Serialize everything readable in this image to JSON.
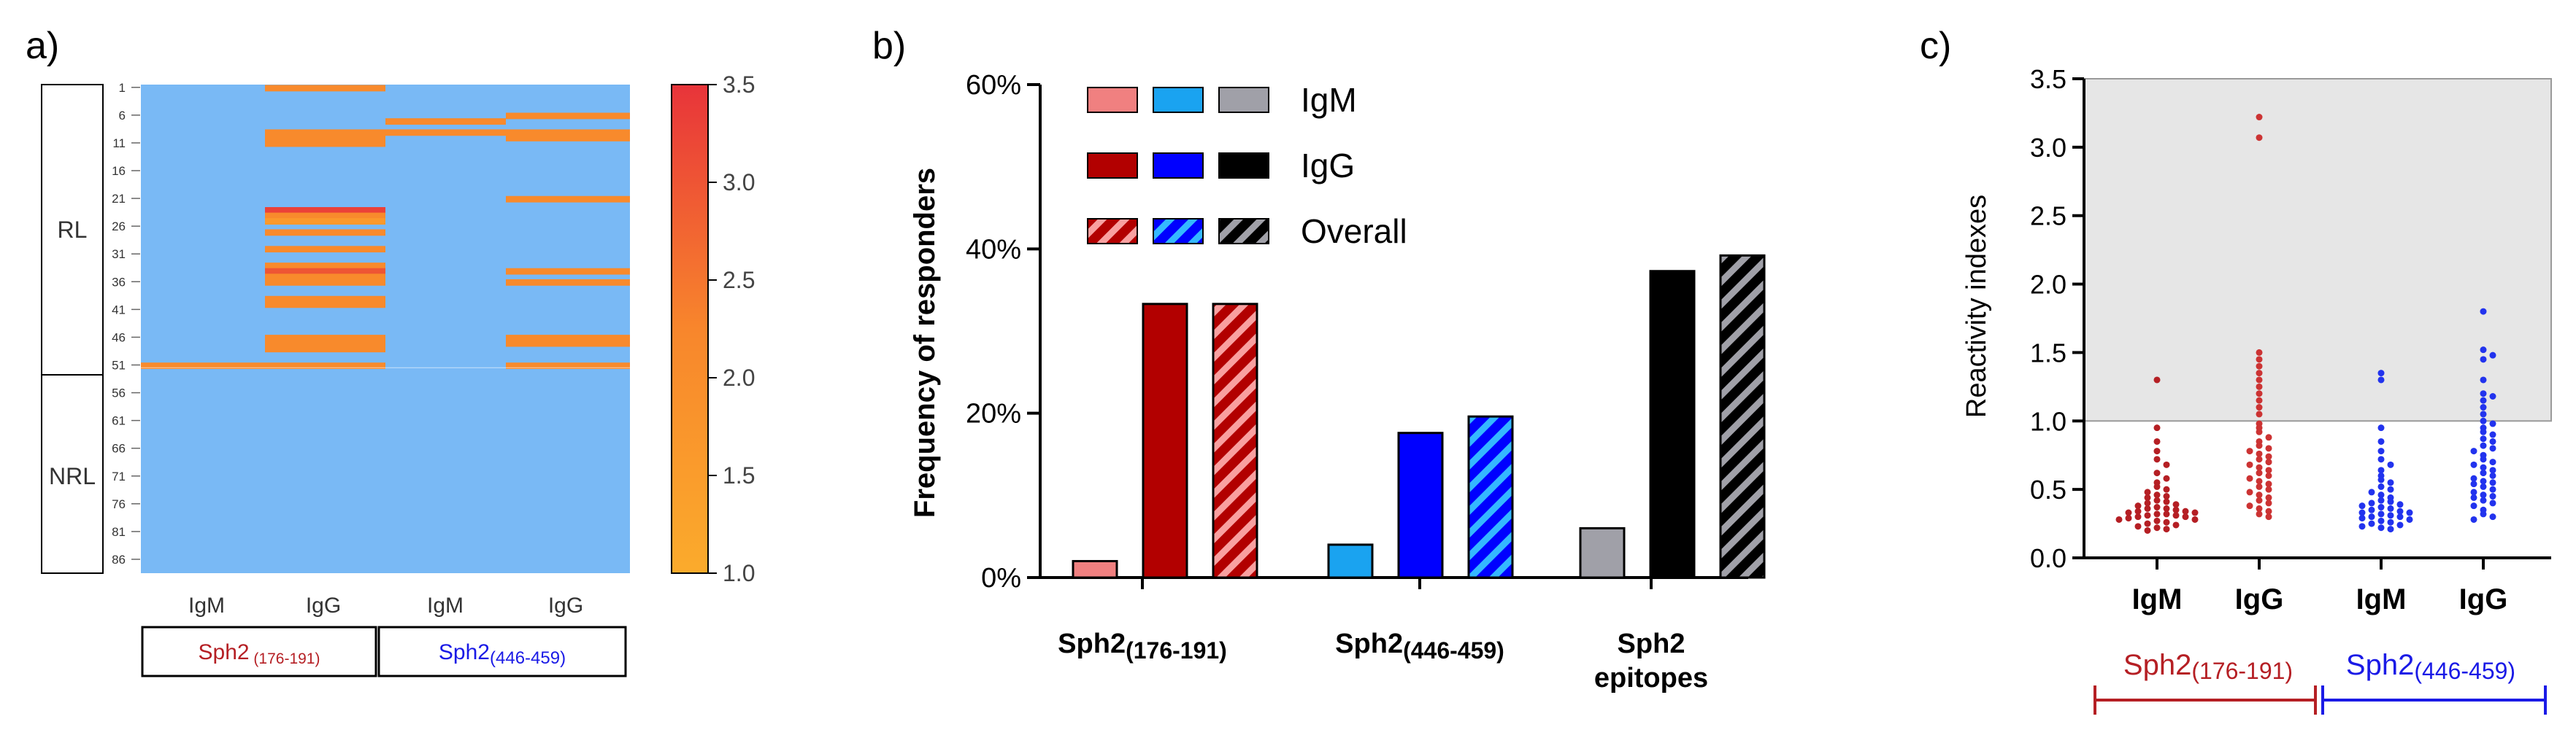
{
  "colors": {
    "heat_background": "#79b9f5",
    "heat_low": "#fb9f2b",
    "heat_mid": "#f87d2c",
    "heat_high": "#e8343a",
    "igm_176": "#f08080",
    "igg_176": "#b20000",
    "igm_446": "#1aa3f0",
    "igg_446": "#0000ff",
    "igm_all": "#a0a0a8",
    "igg_all": "#000000",
    "label_176": "#b51f24",
    "label_446": "#1a1ae6",
    "dot_176_igm": "#b51f24",
    "dot_176_igg": "#cc3333",
    "dot_446_igm": "#2233ee",
    "dot_446_igg": "#2233ee",
    "shade": "#e6e6e6"
  },
  "panel_labels": {
    "a": "a)",
    "b": "b)",
    "c": "c)"
  },
  "chart_data": [
    {
      "type": "heatmap",
      "panel": "a",
      "group_labels": [
        "RL",
        "NRL"
      ],
      "group_boundary_row": 51,
      "row_ticks": [
        "1",
        "6",
        "11",
        "16",
        "21",
        "26",
        "31",
        "36",
        "41",
        "46",
        "51",
        "56",
        "61",
        "66",
        "71",
        "76",
        "81",
        "86"
      ],
      "columns": [
        "IgM",
        "IgG",
        "IgM",
        "IgG"
      ],
      "peptide_groups": [
        {
          "name": "Sph2",
          "sub": " (176-191)"
        },
        {
          "name": "Sph2",
          "sub": "(446-459)"
        }
      ],
      "rows_total": 88,
      "baseline_value": 0,
      "colorbar": {
        "min": 1.0,
        "max": 3.5,
        "ticks": [
          "3.5",
          "3.0",
          "2.5",
          "2.0",
          "1.5",
          "1.0"
        ]
      },
      "cells": [
        {
          "col": 0,
          "row": 51,
          "value": 2.1
        },
        {
          "col": 1,
          "row": 1,
          "value": 2.1
        },
        {
          "col": 1,
          "row": 9,
          "value": 2.1
        },
        {
          "col": 1,
          "row": 10,
          "value": 2.1
        },
        {
          "col": 1,
          "row": 11,
          "value": 2.1
        },
        {
          "col": 1,
          "row": 23,
          "value": 3.3
        },
        {
          "col": 1,
          "row": 24,
          "value": 2.1
        },
        {
          "col": 1,
          "row": 25,
          "value": 1.6
        },
        {
          "col": 1,
          "row": 27,
          "value": 2.1
        },
        {
          "col": 1,
          "row": 30,
          "value": 2.1
        },
        {
          "col": 1,
          "row": 33,
          "value": 2.1
        },
        {
          "col": 1,
          "row": 34,
          "value": 3.0
        },
        {
          "col": 1,
          "row": 35,
          "value": 2.1
        },
        {
          "col": 1,
          "row": 36,
          "value": 2.1
        },
        {
          "col": 1,
          "row": 39,
          "value": 2.1
        },
        {
          "col": 1,
          "row": 40,
          "value": 2.1
        },
        {
          "col": 1,
          "row": 46,
          "value": 2.1
        },
        {
          "col": 1,
          "row": 47,
          "value": 2.1
        },
        {
          "col": 1,
          "row": 48,
          "value": 2.1
        },
        {
          "col": 1,
          "row": 51,
          "value": 2.1
        },
        {
          "col": 2,
          "row": 7,
          "value": 2.1
        },
        {
          "col": 2,
          "row": 9,
          "value": 2.1
        },
        {
          "col": 3,
          "row": 6,
          "value": 2.1
        },
        {
          "col": 3,
          "row": 9,
          "value": 2.1
        },
        {
          "col": 3,
          "row": 10,
          "value": 2.1
        },
        {
          "col": 3,
          "row": 21,
          "value": 2.1
        },
        {
          "col": 3,
          "row": 34,
          "value": 2.1
        },
        {
          "col": 3,
          "row": 36,
          "value": 2.1
        },
        {
          "col": 3,
          "row": 46,
          "value": 2.1
        },
        {
          "col": 3,
          "row": 47,
          "value": 2.1
        },
        {
          "col": 3,
          "row": 51,
          "value": 2.1
        }
      ]
    },
    {
      "type": "bar",
      "panel": "b",
      "ylabel": "Frequency of responders",
      "ylim": [
        0,
        60
      ],
      "yticks": [
        "0%",
        "20%",
        "40%",
        "60%"
      ],
      "categories": [
        {
          "name": "Sph2",
          "sub": "(176-191)"
        },
        {
          "name": "Sph2",
          "sub": "(446-459)"
        },
        {
          "name": "Sph2",
          "line2": "epitopes"
        }
      ],
      "series": [
        {
          "name": "IgM",
          "values": [
            2,
            4,
            6
          ],
          "colors": [
            "#f08080",
            "#1aa3f0",
            "#a0a0a8"
          ],
          "hatched": false
        },
        {
          "name": "IgG",
          "values": [
            33.3,
            17.6,
            37.3
          ],
          "colors": [
            "#b20000",
            "#0000ff",
            "#000000"
          ],
          "hatched": false
        },
        {
          "name": "Overall",
          "values": [
            33.3,
            19.6,
            39.2
          ],
          "colors": [
            "#b20000",
            "#0000ff",
            "#000000"
          ],
          "hatched": true
        }
      ],
      "legend": [
        {
          "label": "IgM",
          "colors": [
            "#f08080",
            "#1aa3f0",
            "#a0a0a8"
          ],
          "hatched": false
        },
        {
          "label": "IgG",
          "colors": [
            "#b20000",
            "#0000ff",
            "#000000"
          ],
          "hatched": false
        },
        {
          "label": "Overall",
          "colors": [
            "#b20000",
            "#0000ff",
            "#000000"
          ],
          "hatched": true
        }
      ],
      "legend_placement": "top"
    },
    {
      "type": "scatter",
      "panel": "c",
      "ylabel": "Reactivity indexes",
      "ylim": [
        0,
        3.5
      ],
      "yticks": [
        "0.0",
        "0.5",
        "1.0",
        "1.5",
        "2.0",
        "2.5",
        "3.0",
        "3.5"
      ],
      "threshold": 1.0,
      "categories": [
        "IgM",
        "IgG",
        "IgM",
        "IgG"
      ],
      "peptide_groups": [
        {
          "name": "Sph2",
          "sub": "(176-191)"
        },
        {
          "name": "Sph2",
          "sub": "(446-459)"
        }
      ],
      "series": [
        {
          "values": [
            1.3,
            0.95,
            0.85,
            0.78,
            0.72,
            0.68,
            0.62,
            0.58,
            0.55,
            0.52,
            0.5,
            0.48,
            0.46,
            0.45,
            0.44,
            0.42,
            0.41,
            0.4,
            0.39,
            0.38,
            0.37,
            0.36,
            0.36,
            0.35,
            0.34,
            0.34,
            0.33,
            0.33,
            0.32,
            0.32,
            0.31,
            0.31,
            0.3,
            0.3,
            0.29,
            0.28,
            0.28,
            0.27,
            0.26,
            0.25,
            0.24,
            0.23,
            0.22,
            0.21,
            0.2
          ]
        },
        {
          "values": [
            3.22,
            3.07,
            1.5,
            1.45,
            1.4,
            1.35,
            1.3,
            1.25,
            1.2,
            1.15,
            1.1,
            1.05,
            0.98,
            0.95,
            0.92,
            0.88,
            0.85,
            0.82,
            0.8,
            0.78,
            0.76,
            0.74,
            0.72,
            0.7,
            0.68,
            0.66,
            0.64,
            0.62,
            0.6,
            0.58,
            0.56,
            0.54,
            0.52,
            0.5,
            0.48,
            0.46,
            0.44,
            0.42,
            0.4,
            0.38,
            0.36,
            0.34,
            0.32,
            0.3
          ]
        },
        {
          "values": [
            1.35,
            1.3,
            0.95,
            0.85,
            0.78,
            0.72,
            0.68,
            0.64,
            0.6,
            0.57,
            0.55,
            0.52,
            0.5,
            0.48,
            0.46,
            0.44,
            0.42,
            0.41,
            0.4,
            0.39,
            0.38,
            0.37,
            0.36,
            0.35,
            0.34,
            0.33,
            0.33,
            0.32,
            0.31,
            0.3,
            0.3,
            0.29,
            0.28,
            0.27,
            0.26,
            0.25,
            0.24,
            0.23,
            0.22,
            0.21
          ]
        },
        {
          "values": [
            1.8,
            1.52,
            1.48,
            1.45,
            1.3,
            1.2,
            1.18,
            1.15,
            1.1,
            1.05,
            1.0,
            0.98,
            0.95,
            0.92,
            0.9,
            0.87,
            0.85,
            0.82,
            0.8,
            0.78,
            0.75,
            0.72,
            0.7,
            0.68,
            0.66,
            0.64,
            0.62,
            0.6,
            0.58,
            0.56,
            0.55,
            0.54,
            0.52,
            0.5,
            0.48,
            0.46,
            0.45,
            0.44,
            0.42,
            0.4,
            0.38,
            0.35,
            0.32,
            0.3,
            0.28
          ]
        }
      ]
    }
  ]
}
